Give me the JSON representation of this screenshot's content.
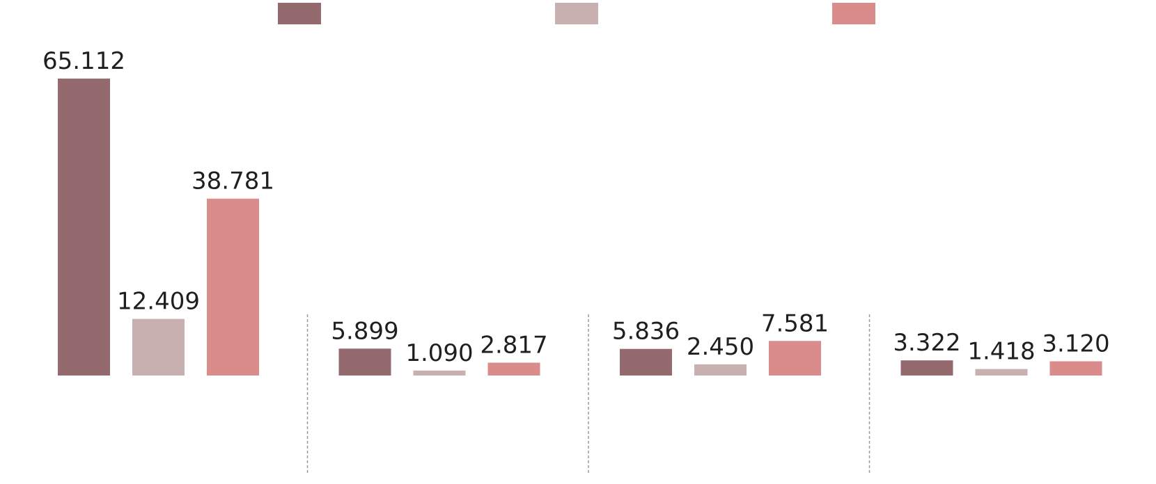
{
  "chart_data": {
    "type": "bar",
    "title": "",
    "xlabel": "",
    "ylabel": "",
    "ylim": [
      0,
      65112
    ],
    "grid": false,
    "legend": "top",
    "categories": [
      "",
      "",
      "",
      ""
    ],
    "series": [
      {
        "name": "",
        "color": "#956a6f",
        "values": [
          65112,
          5899,
          5836,
          3322
        ],
        "labels": [
          "65.112",
          "5.899",
          "5.836",
          "3.322"
        ]
      },
      {
        "name": "",
        "color": "#c8afb0",
        "values": [
          12409,
          1090,
          2450,
          1418
        ],
        "labels": [
          "12.409",
          "1.090",
          "2.450",
          "1.418"
        ]
      },
      {
        "name": "",
        "color": "#da8c8c",
        "values": [
          38781,
          2817,
          7581,
          3120
        ],
        "labels": [
          "38.781",
          "2.817",
          "7.581",
          "3.120"
        ]
      }
    ]
  }
}
